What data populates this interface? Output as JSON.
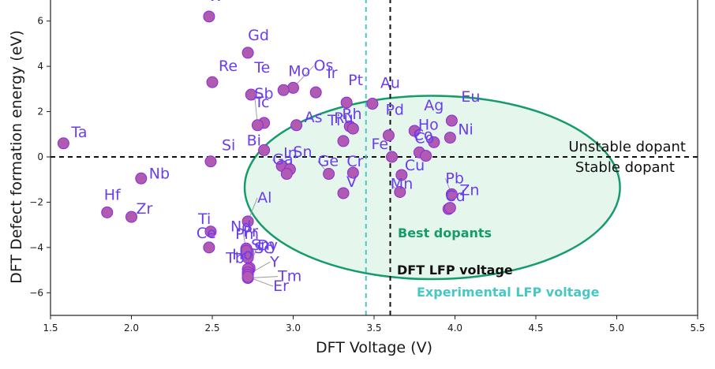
{
  "chart_data": {
    "type": "scatter",
    "title": "",
    "xlabel": "DFT Voltage (V)",
    "ylabel": "DFT Defect formation energy (eV)",
    "xlim": [
      1.5,
      5.5
    ],
    "ylim": [
      -7,
      7
    ],
    "xticks": [
      "1.5",
      "2.0",
      "2.5",
      "3.0",
      "3.5",
      "4.0",
      "4.5",
      "5.0",
      "5.5"
    ],
    "yticks": [
      "−6",
      "−4",
      "−2",
      "0",
      "2",
      "4",
      "6"
    ],
    "colors": {
      "marker_fill": "#b05ab0",
      "marker_edge": "#8a2be2",
      "label": "#6a3df0",
      "ellipse_edge": "#169c6c",
      "ellipse_fill": "#e2f5ea",
      "lfp_line": "#111111",
      "exp_line": "#48c8c4"
    },
    "points": [
      {
        "label": "W",
        "x": 2.48,
        "y": 6.2
      },
      {
        "label": "Gd",
        "x": 2.72,
        "y": 4.6
      },
      {
        "label": "Os",
        "x": 3.0,
        "y": 3.05
      },
      {
        "label": "Mo",
        "x": 2.94,
        "y": 2.95
      },
      {
        "label": "Re",
        "x": 2.5,
        "y": 3.3
      },
      {
        "label": "Te",
        "x": 2.74,
        "y": 2.75
      },
      {
        "label": "Ir",
        "x": 3.14,
        "y": 2.85
      },
      {
        "label": "Pt",
        "x": 3.33,
        "y": 2.4
      },
      {
        "label": "Au",
        "x": 3.49,
        "y": 2.35
      },
      {
        "label": "Tc",
        "x": 2.82,
        "y": 1.5
      },
      {
        "label": "Sb",
        "x": 2.78,
        "y": 1.4
      },
      {
        "label": "Ru",
        "x": 3.35,
        "y": 1.35
      },
      {
        "label": "Rh",
        "x": 3.37,
        "y": 1.25
      },
      {
        "label": "As",
        "x": 3.02,
        "y": 1.4
      },
      {
        "label": "Bi",
        "x": 2.82,
        "y": 0.3
      },
      {
        "label": "Ti",
        "x": 3.31,
        "y": 0.7
      },
      {
        "label": "Pd",
        "x": 3.59,
        "y": 0.95
      },
      {
        "label": "Ag",
        "x": 3.75,
        "y": 1.15
      },
      {
        "label": "Eu",
        "x": 3.98,
        "y": 1.6
      },
      {
        "label": "Ho",
        "x": 3.87,
        "y": 0.65
      },
      {
        "label": "Ni",
        "x": 3.97,
        "y": 0.85
      },
      {
        "label": "Fe",
        "x": 3.61,
        "y": 0.0
      },
      {
        "label": "Co",
        "x": 3.78,
        "y": 0.2
      },
      {
        "label": "Co",
        "x": 3.82,
        "y": 0.05
      },
      {
        "label": "Si",
        "x": 2.49,
        "y": -0.2
      },
      {
        "label": "Ta",
        "x": 1.58,
        "y": 0.6
      },
      {
        "label": "Nb",
        "x": 2.06,
        "y": -0.95
      },
      {
        "label": "In",
        "x": 2.93,
        "y": -0.4
      },
      {
        "label": "Sn",
        "x": 2.98,
        "y": -0.55
      },
      {
        "label": "Ga",
        "x": 2.96,
        "y": -0.75
      },
      {
        "label": "Ge",
        "x": 3.22,
        "y": -0.75
      },
      {
        "label": "Cr",
        "x": 3.37,
        "y": -0.7
      },
      {
        "label": "Cu",
        "x": 3.67,
        "y": -0.8
      },
      {
        "label": "V",
        "x": 3.31,
        "y": -1.6
      },
      {
        "label": "Mn",
        "x": 3.66,
        "y": -1.55
      },
      {
        "label": "Pb",
        "x": 3.98,
        "y": -1.65
      },
      {
        "label": "Cd",
        "x": 3.96,
        "y": -2.3
      },
      {
        "label": "Zn",
        "x": 3.97,
        "y": -2.25
      },
      {
        "label": "Hf",
        "x": 1.85,
        "y": -2.45
      },
      {
        "label": "Zr",
        "x": 2.0,
        "y": -2.65
      },
      {
        "label": "Al",
        "x": 2.72,
        "y": -2.85
      },
      {
        "label": "Ti",
        "x": 2.49,
        "y": -3.3
      },
      {
        "label": "Nd",
        "x": 2.71,
        "y": -4.05
      },
      {
        "label": "Pm",
        "x": 2.72,
        "y": -4.25
      },
      {
        "label": "Pr",
        "x": 2.71,
        "y": -4.15
      },
      {
        "label": "Sm",
        "x": 2.72,
        "y": -4.45
      },
      {
        "label": "Ce",
        "x": 2.48,
        "y": -4.0
      },
      {
        "label": "Sc",
        "x": 2.73,
        "y": -4.95
      },
      {
        "label": "Tb",
        "x": 2.73,
        "y": -4.9
      },
      {
        "label": "Ho",
        "x": 2.72,
        "y": -4.95
      },
      {
        "label": "Dy",
        "x": 2.72,
        "y": -5.1
      },
      {
        "label": "Y",
        "x": 2.72,
        "y": -5.2
      },
      {
        "label": "Tm",
        "x": 2.72,
        "y": -5.35
      },
      {
        "label": "Er",
        "x": 2.72,
        "y": -5.3
      }
    ],
    "lines": {
      "horizontal_y": 0,
      "lfp_voltage": 3.6,
      "experimental_lfp_voltage": 3.45
    },
    "ellipse": {
      "cx": 3.86,
      "cy": -1.35,
      "rx": 1.16,
      "ry": 4.05,
      "label": "Best dopants"
    },
    "annotations": {
      "unstable": "Unstable dopant",
      "stable": "Stable dopant",
      "lfp": "DFT LFP voltage",
      "exp": "Experimental LFP voltage"
    }
  }
}
